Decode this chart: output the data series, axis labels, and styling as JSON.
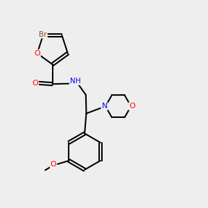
{
  "background_color": "#eeeeee",
  "bond_color": "#000000",
  "atom_colors": {
    "Br": "#8B4513",
    "O": "#FF0000",
    "N": "#0000FF",
    "H": "#888888",
    "C": "#000000"
  },
  "figsize": [
    3.0,
    3.0
  ],
  "dpi": 100
}
